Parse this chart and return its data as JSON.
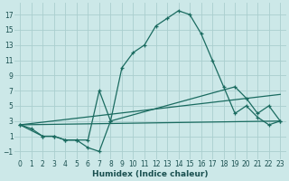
{
  "xlabel": "Humidex (Indice chaleur)",
  "background_color": "#cce8e8",
  "grid_color": "#aacece",
  "line_color": "#1a6b60",
  "xlim": [
    -0.5,
    23.5
  ],
  "ylim": [
    -2,
    18.5
  ],
  "xticks": [
    0,
    1,
    2,
    3,
    4,
    5,
    6,
    7,
    8,
    9,
    10,
    11,
    12,
    13,
    14,
    15,
    16,
    17,
    18,
    19,
    20,
    21,
    22,
    23
  ],
  "yticks": [
    -1,
    1,
    3,
    5,
    7,
    9,
    11,
    13,
    15,
    17
  ],
  "curve1_x": [
    0,
    1,
    2,
    3,
    4,
    5,
    6,
    7,
    8,
    9,
    10,
    11,
    12,
    13,
    14,
    15,
    16,
    17,
    18,
    19,
    20,
    21,
    22,
    23
  ],
  "curve1_y": [
    2.5,
    2,
    1,
    1,
    0.5,
    0.5,
    -0.5,
    -1,
    3,
    10,
    12,
    13,
    15.5,
    16.5,
    17.5,
    17,
    14.5,
    11,
    7.5,
    4,
    5,
    3.5,
    2.5,
    3
  ],
  "curve2_x": [
    0,
    2,
    3,
    4,
    5,
    6,
    7,
    8,
    19,
    20,
    21,
    22,
    23
  ],
  "curve2_y": [
    2.5,
    1,
    1,
    0.5,
    0.5,
    0.5,
    7,
    3,
    7.5,
    6,
    4,
    5,
    3
  ],
  "curve3_x": [
    0,
    23
  ],
  "curve3_y": [
    2.5,
    6.5
  ],
  "curve4_x": [
    0,
    23
  ],
  "curve4_y": [
    2.5,
    3.0
  ]
}
